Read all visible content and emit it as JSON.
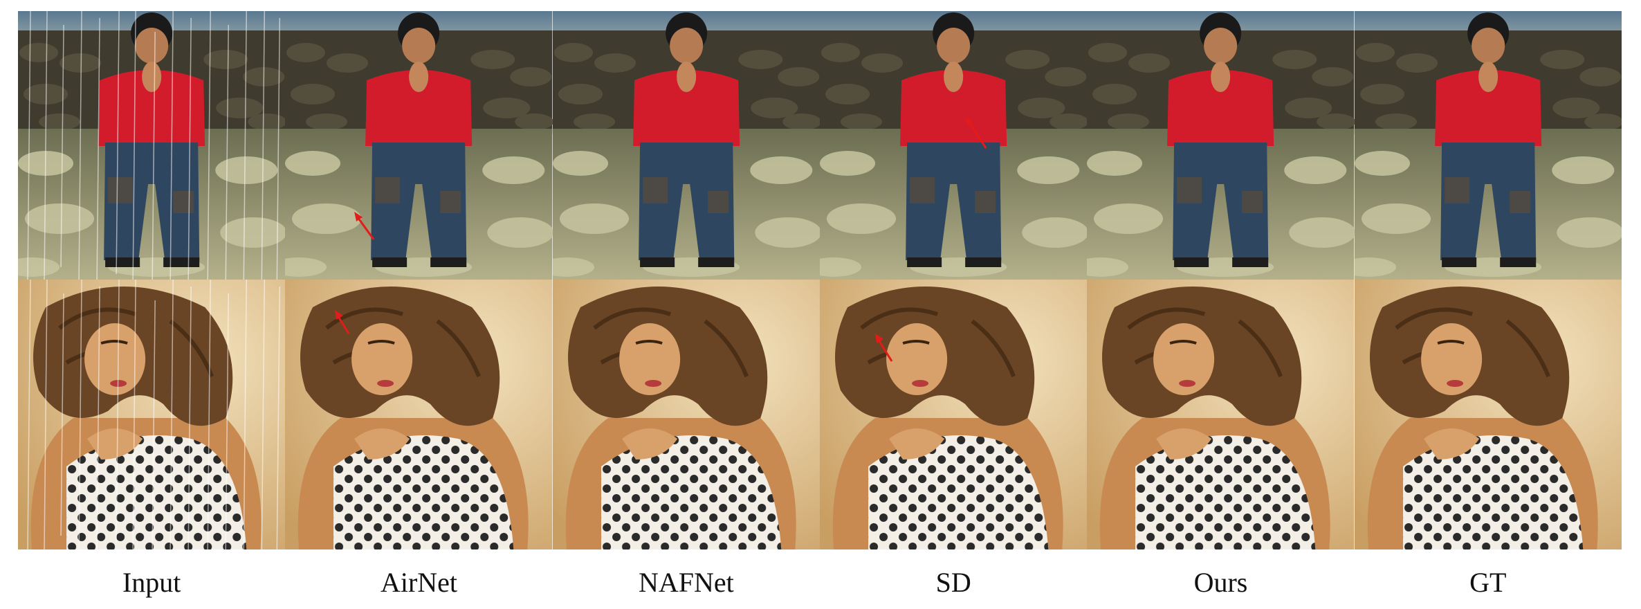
{
  "figure": {
    "columns": [
      {
        "label": "Input",
        "rain": true,
        "arrow_row1": false,
        "arrow_row2": false
      },
      {
        "label": "AirNet",
        "rain": false,
        "arrow_row1": true,
        "arrow_row2": true
      },
      {
        "label": "NAFNet",
        "rain": false,
        "arrow_row1": false,
        "arrow_row2": false
      },
      {
        "label": "SD",
        "rain": false,
        "arrow_row1": true,
        "arrow_row2": true
      },
      {
        "label": "Ours",
        "rain": false,
        "arrow_row1": false,
        "arrow_row2": false
      },
      {
        "label": "GT",
        "rain": false,
        "arrow_row1": false,
        "arrow_row2": false
      }
    ],
    "rows": [
      "boy-praying-scene",
      "woman-polka-dot-scene"
    ],
    "colors": {
      "arrow": "#e21b1b",
      "shirt": "#d21c2c",
      "jeans": "#2f4660",
      "stone_wall": "#3f3b2e",
      "ground": "#9a9a78",
      "skin": "#d8a06b",
      "hair": "#6a4525",
      "background_warm": "#e9d3a9",
      "fabric": "#f3efe6",
      "dots": "#2a2a2a"
    }
  }
}
